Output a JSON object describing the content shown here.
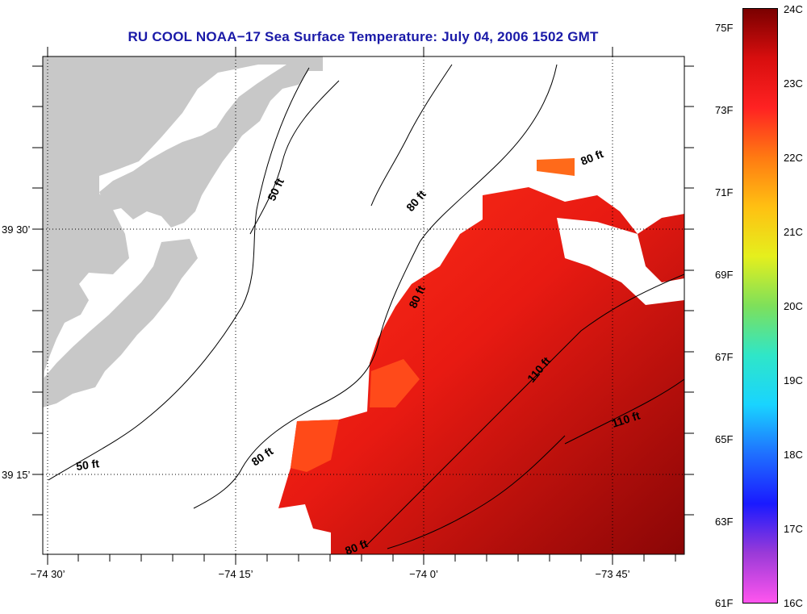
{
  "title": "RU COOL  NOAA−17  Sea Surface Temperature:  July 04, 2006 1502 GMT",
  "lat_labels": [
    "39 30’",
    "39 15’"
  ],
  "lon_labels": [
    "−74 30’",
    "−74 15’",
    "−74 0’",
    "−73 45’"
  ],
  "contour_labels": [
    "50 ft",
    "50 ft",
    "80 ft",
    "80 ft",
    "80 ft",
    "80 ft",
    "80 ft",
    "110 ft",
    "110 ft"
  ],
  "colorbar": {
    "fahrenheit": [
      "75F",
      "73F",
      "71F",
      "69F",
      "67F",
      "65F",
      "63F",
      "61F"
    ],
    "celsius": [
      "24C",
      "23C",
      "22C",
      "21C",
      "20C",
      "19C",
      "18C",
      "17C",
      "16C"
    ],
    "range_c": [
      16,
      24
    ],
    "colors": [
      "#ff55ee",
      "#9a3ad8",
      "#1a1aff",
      "#1f6fff",
      "#19d4ff",
      "#2fe6c8",
      "#7ee05a",
      "#e5ef1d",
      "#ffc012",
      "#ff7a12",
      "#ff2222",
      "#d80e0e",
      "#7a0000"
    ]
  },
  "colors": {
    "land": "#c8c8c8",
    "title": "#1a1aa8"
  }
}
